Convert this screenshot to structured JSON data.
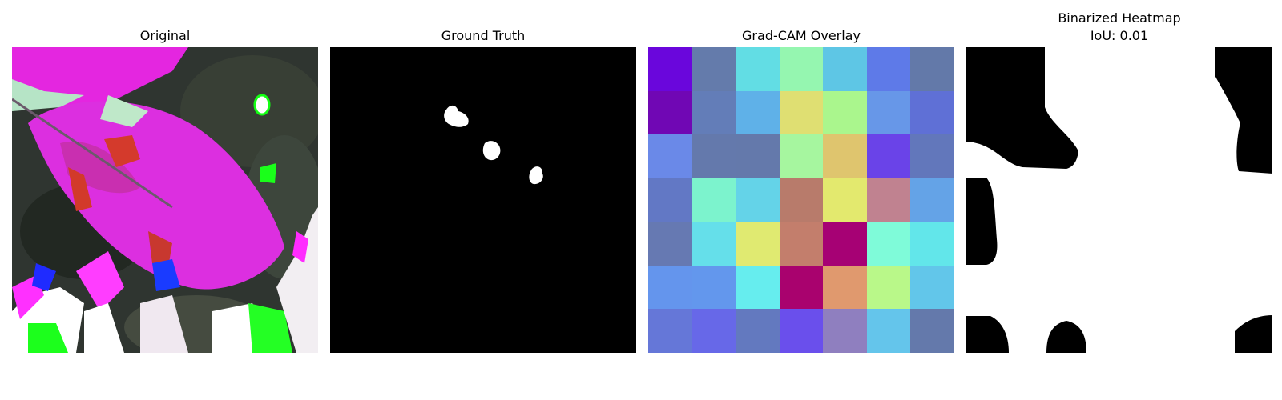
{
  "panels": {
    "original": {
      "title": "Original"
    },
    "ground_truth": {
      "title": "Ground Truth"
    },
    "gradcam": {
      "title": "Grad-CAM Overlay",
      "grid_colors": [
        [
          "#6a06dc",
          "#647bab",
          "#62dde4",
          "#95f6b0",
          "#5ec6e5",
          "#5e7ae8",
          "#6379a9"
        ],
        [
          "#7007b4",
          "#637db8",
          "#5fb1e8",
          "#dfdf72",
          "#aaf68d",
          "#6797e8",
          "#5f70d6"
        ],
        [
          "#6a89e8",
          "#6479ac",
          "#6479ab",
          "#a6f69f",
          "#dfc56e",
          "#6a43e8",
          "#6277bb"
        ],
        [
          "#6278c5",
          "#7cf3cd",
          "#64d3e8",
          "#b87b6b",
          "#e3e96e",
          "#c08290",
          "#64a3e7"
        ],
        [
          "#6679b2",
          "#65dfea",
          "#e0ea71",
          "#c37e6c",
          "#a60174",
          "#7ffbd9",
          "#62e6ea"
        ],
        [
          "#6495ed",
          "#6397ed",
          "#66edee",
          "#a9026e",
          "#e0996e",
          "#b9f889",
          "#62c6ea"
        ],
        [
          "#6577d8",
          "#6768e8",
          "#6379bf",
          "#6a4fec",
          "#8f7fbf",
          "#64c5eb",
          "#6479ab"
        ]
      ]
    },
    "binarized": {
      "title_line1": "Binarized Heatmap",
      "title_line2": "IoU: 0.01"
    }
  }
}
